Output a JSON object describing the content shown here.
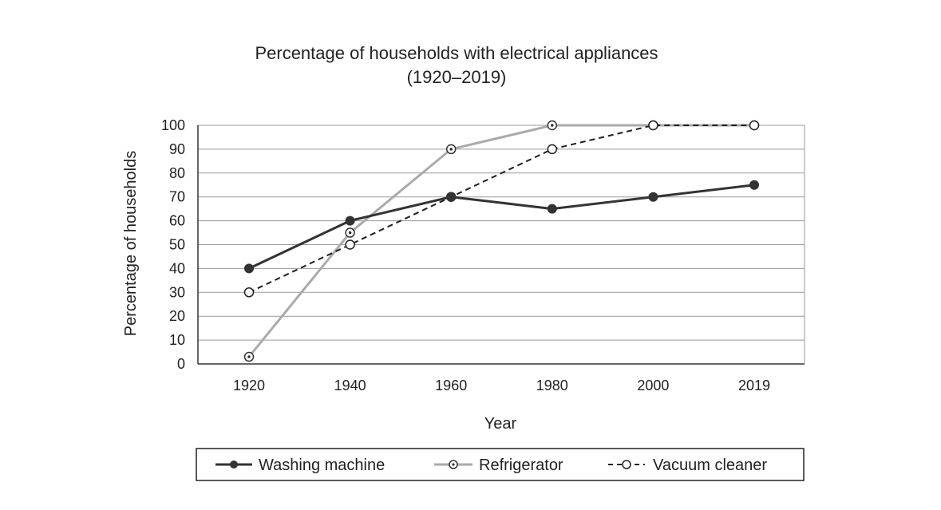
{
  "chart_data": {
    "type": "line",
    "title": "Percentage of households with electrical appliances",
    "subtitle": "(1920–2019)",
    "xlabel": "Year",
    "ylabel": "Percentage of households",
    "categories": [
      "1920",
      "1940",
      "1960",
      "1980",
      "2000",
      "2019"
    ],
    "yticks": [
      "0",
      "10",
      "20",
      "30",
      "40",
      "50",
      "60",
      "70",
      "80",
      "90",
      "100"
    ],
    "ylim": [
      0,
      100
    ],
    "grid": true,
    "legend_position": "bottom",
    "series": [
      {
        "name": "Washing machine",
        "values": [
          40,
          60,
          70,
          65,
          70,
          75
        ],
        "color": "#333333",
        "style": "solid-filled"
      },
      {
        "name": "Refrigerator",
        "values": [
          3,
          55,
          90,
          100,
          100,
          100
        ],
        "color": "#aaaaaa",
        "style": "solid-dotted-marker"
      },
      {
        "name": "Vacuum cleaner",
        "values": [
          30,
          50,
          70,
          90,
          100,
          100
        ],
        "color": "#222222",
        "style": "dashed-hollow"
      }
    ]
  }
}
